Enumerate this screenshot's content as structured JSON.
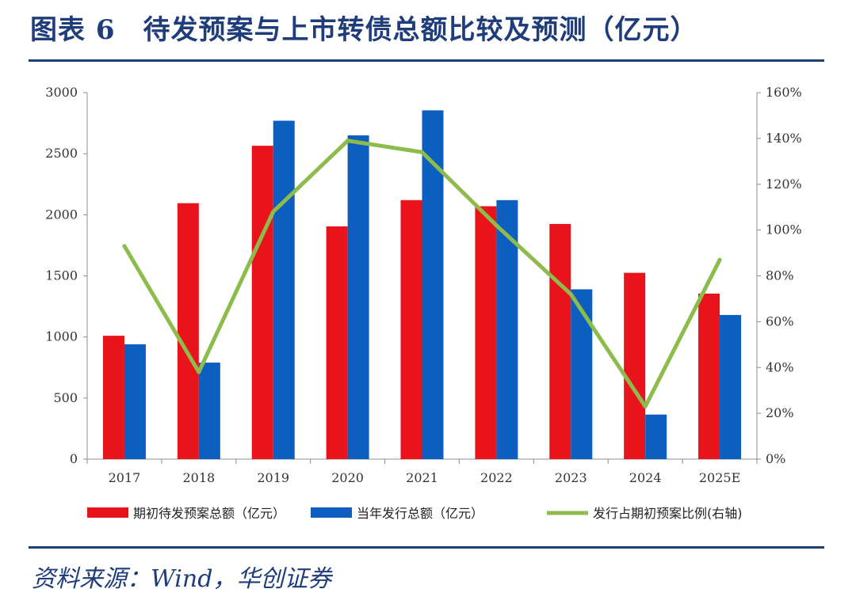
{
  "header": {
    "title": "图表 6　待发预案与上市转债总额比较及预测（亿元）"
  },
  "footer": {
    "source": "资料来源：Wind，华创证券"
  },
  "chart_data": {
    "type": "bar",
    "title": "图表 6　待发预案与上市转债总额比较及预测（亿元）",
    "categories": [
      "2017",
      "2018",
      "2019",
      "2020",
      "2021",
      "2022",
      "2023",
      "2024",
      "2025E"
    ],
    "series": [
      {
        "name": "期初待发预案总额（亿元）",
        "type": "bar",
        "axis": "left",
        "color": "#e8131b",
        "values": [
          1010,
          2095,
          2565,
          1905,
          2120,
          2070,
          1925,
          1525,
          1355
        ]
      },
      {
        "name": "当年发行总额（亿元）",
        "type": "bar",
        "axis": "left",
        "color": "#0c5ebf",
        "values": [
          940,
          790,
          2770,
          2650,
          2855,
          2120,
          1390,
          365,
          1180
        ]
      },
      {
        "name": "发行占期初预案比例(右轴)",
        "type": "line",
        "axis": "right",
        "color": "#8dbb4c",
        "values": [
          0.93,
          0.38,
          1.08,
          1.39,
          1.34,
          1.02,
          0.72,
          0.23,
          0.87
        ]
      }
    ],
    "yleft": {
      "min": 0,
      "max": 3000,
      "ticks": [
        "0",
        "500",
        "1000",
        "1500",
        "2000",
        "2500",
        "3000"
      ]
    },
    "yright": {
      "min": 0,
      "max": 1.6,
      "ticks": [
        "0%",
        "20%",
        "40%",
        "60%",
        "80%",
        "100%",
        "120%",
        "140%",
        "160%"
      ]
    },
    "xlabel": "",
    "ylabel": "",
    "grid": false,
    "legend": "bottom"
  }
}
